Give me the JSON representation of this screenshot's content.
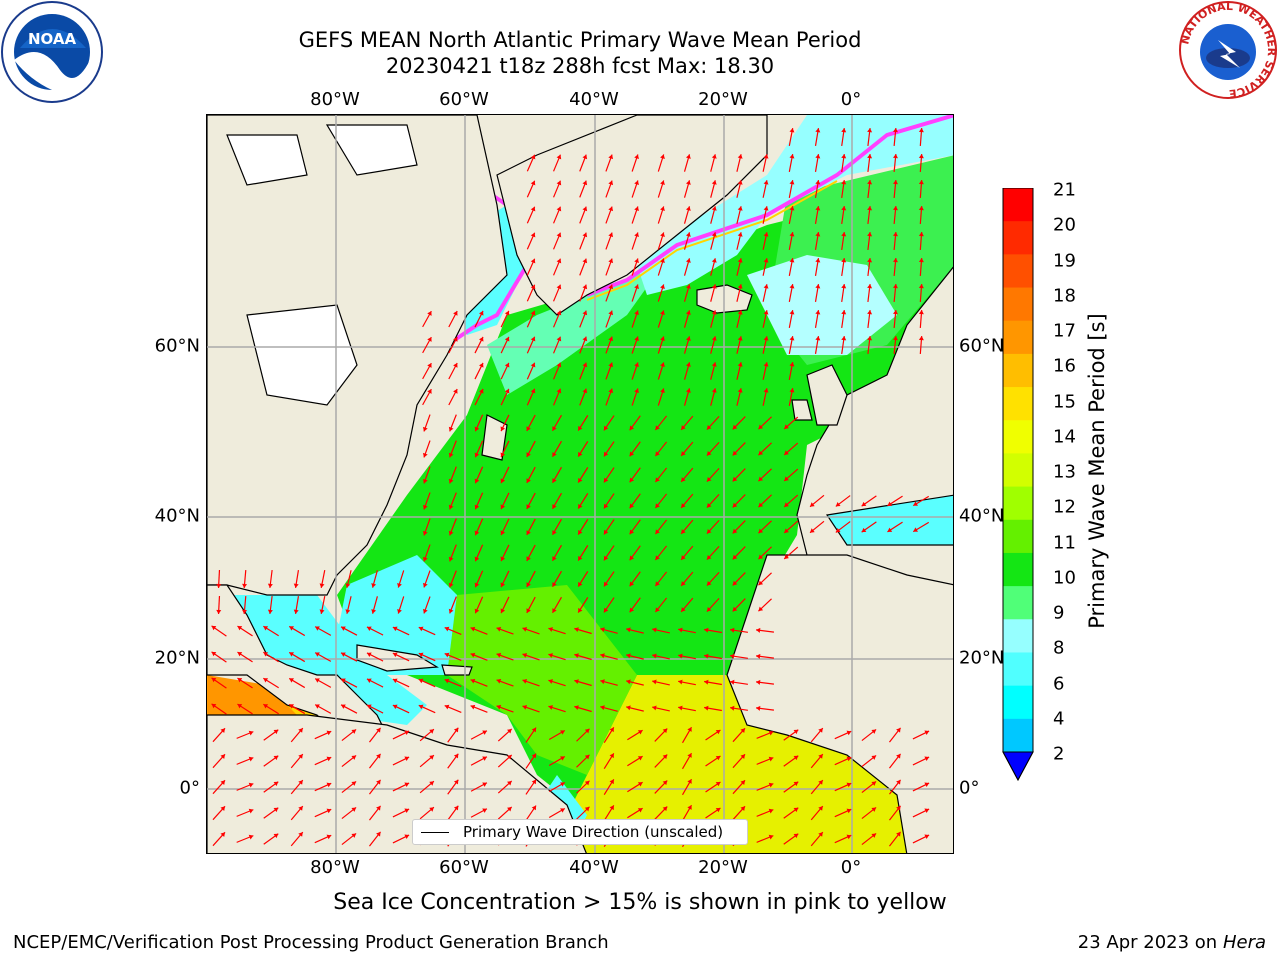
{
  "title": {
    "line1": "GEFS MEAN North Atlantic Primary Wave Mean Period",
    "line2": "20230421 t18z 288h fcst   Max: 18.30"
  },
  "map": {
    "lon_labels": [
      "80°W",
      "60°W",
      "40°W",
      "20°W",
      "0°"
    ],
    "lat_labels": [
      "60°N",
      "40°N",
      "20°N",
      "0°"
    ],
    "legend_label": "Primary Wave Direction (unscaled)",
    "land_color": "#efecdc",
    "ocean_fill": {
      "tropics_warm": "#ffd400",
      "midlat": "#14e614",
      "coastal": "#5affff",
      "gulf_warm": "#ff8c00"
    },
    "arrow_color": "#ff0000"
  },
  "colorbar": {
    "title": "Primary Wave Mean Period [s]",
    "ticks": [
      "21",
      "20",
      "19",
      "18",
      "17",
      "16",
      "15",
      "14",
      "13",
      "12",
      "11",
      "10",
      "9",
      "8",
      "6",
      "4",
      "2"
    ],
    "colors": [
      "#ff0000",
      "#ff2a00",
      "#ff5000",
      "#ff7800",
      "#ff9600",
      "#ffbe00",
      "#ffe100",
      "#f0ff00",
      "#d2ff00",
      "#a0ff00",
      "#64f000",
      "#14e614",
      "#50ff78",
      "#96ffff",
      "#50ffff",
      "#00ffff",
      "#00c8ff",
      "#0078ff",
      "#0000ff"
    ]
  },
  "sea_ice_note": "Sea Ice Concentration > 15% is shown in pink to yellow",
  "footer": {
    "left": "NCEP/EMC/Verification Post Processing Product Generation Branch",
    "right_prefix": "23 Apr 2023 on ",
    "right_machine": "Hera"
  },
  "logos": {
    "noaa_text": "NOAA",
    "nws_ring_text": "NATIONAL WEATHER SERVICE"
  }
}
